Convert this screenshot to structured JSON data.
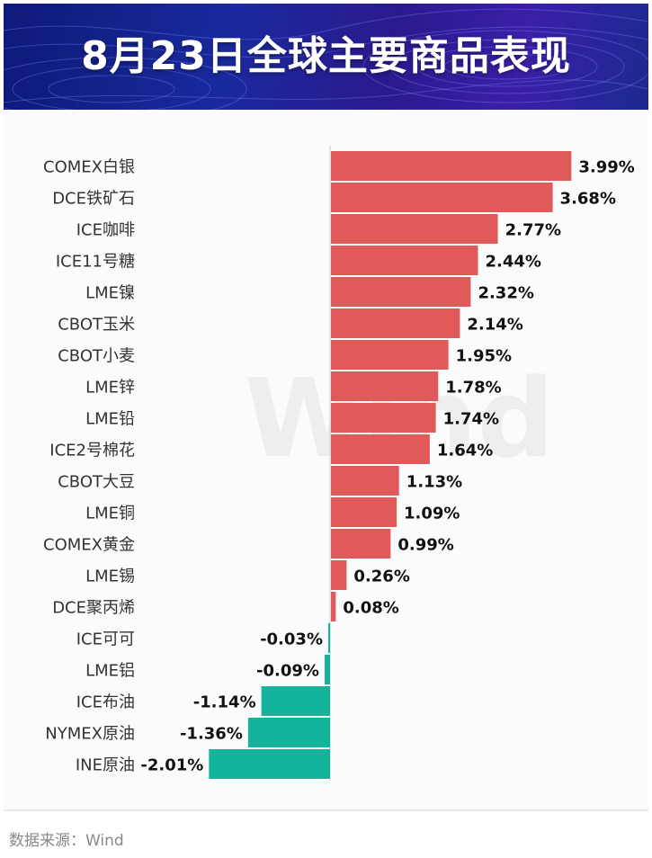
{
  "header": {
    "title": "8月23日全球主要商品表现"
  },
  "watermark": "Wind",
  "source": "数据来源：Wind",
  "colors": {
    "positive": "#e05a5a",
    "negative": "#14b39b",
    "axis": "#cccccc"
  },
  "chart_data": {
    "type": "bar",
    "orientation": "horizontal",
    "title": "8月23日全球主要商品表现",
    "unit": "%",
    "categories": [
      "COMEX白银",
      "DCE铁矿石",
      "ICE咖啡",
      "ICE11号糖",
      "LME镍",
      "CBOT玉米",
      "CBOT小麦",
      "LME锌",
      "LME铅",
      "ICE2号棉花",
      "CBOT大豆",
      "LME铜",
      "COMEX黄金",
      "LME锡",
      "DCE聚丙烯",
      "ICE可可",
      "LME铝",
      "ICE布油",
      "NYMEX原油",
      "INE原油"
    ],
    "values": [
      3.99,
      3.68,
      2.77,
      2.44,
      2.32,
      2.14,
      1.95,
      1.78,
      1.74,
      1.64,
      1.13,
      1.09,
      0.99,
      0.26,
      0.08,
      -0.03,
      -0.09,
      -1.14,
      -1.36,
      -2.01
    ],
    "labels": [
      "3.99%",
      "3.68%",
      "2.77%",
      "2.44%",
      "2.32%",
      "2.14%",
      "1.95%",
      "1.78%",
      "1.74%",
      "1.64%",
      "1.13%",
      "1.09%",
      "0.99%",
      "0.26%",
      "0.08%",
      "-0.03%",
      "-0.09%",
      "-1.14%",
      "-1.36%",
      "-2.01%"
    ]
  }
}
